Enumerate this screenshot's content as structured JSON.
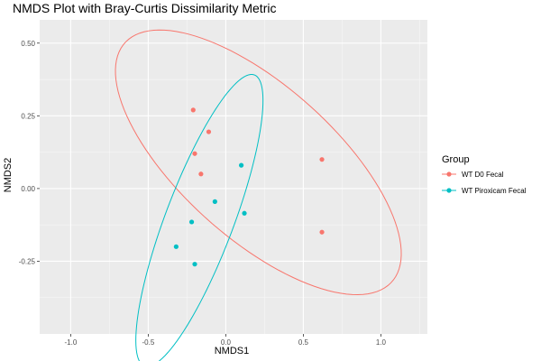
{
  "chart_data": {
    "type": "scatter",
    "title": "NMDS Plot with Bray-Curtis Dissimilarity Metric",
    "xlabel": "NMDS1",
    "ylabel": "NMDS2",
    "xlim": [
      -1.2,
      1.3
    ],
    "ylim": [
      -0.5,
      0.58
    ],
    "x_ticks": [
      -1.0,
      -0.5,
      0.0,
      0.5,
      1.0
    ],
    "x_tick_labels": [
      "-1.0",
      "-0.5",
      "0.0",
      "0.5",
      "1.0"
    ],
    "y_ticks": [
      -0.25,
      0.0,
      0.25,
      0.5
    ],
    "y_tick_labels": [
      "-0.25",
      "0.00",
      "0.25",
      "0.50"
    ],
    "grid": true,
    "legend": {
      "title": "Group",
      "position": "right"
    },
    "series": [
      {
        "name": "WT D0 Fecal",
        "color": "#F8766D",
        "points": [
          {
            "x": -0.21,
            "y": 0.27
          },
          {
            "x": -0.11,
            "y": 0.195
          },
          {
            "x": -0.2,
            "y": 0.12
          },
          {
            "x": -0.16,
            "y": 0.05
          },
          {
            "x": 0.62,
            "y": 0.1
          },
          {
            "x": 0.62,
            "y": -0.15
          }
        ],
        "ellipse": {
          "cx": 0.21,
          "cy": 0.09,
          "rx": 0.98,
          "ry": 0.31,
          "angle_deg": -21
        }
      },
      {
        "name": "WT Piroxicam Fecal",
        "color": "#00BFC4",
        "points": [
          {
            "x": 0.1,
            "y": 0.08
          },
          {
            "x": -0.07,
            "y": -0.045
          },
          {
            "x": 0.12,
            "y": -0.085
          },
          {
            "x": -0.22,
            "y": -0.115
          },
          {
            "x": -0.32,
            "y": -0.2
          },
          {
            "x": -0.2,
            "y": -0.26
          }
        ],
        "ellipse": {
          "cx": -0.17,
          "cy": -0.11,
          "rx": 0.62,
          "ry": 0.19,
          "angle_deg": 52
        }
      }
    ]
  }
}
